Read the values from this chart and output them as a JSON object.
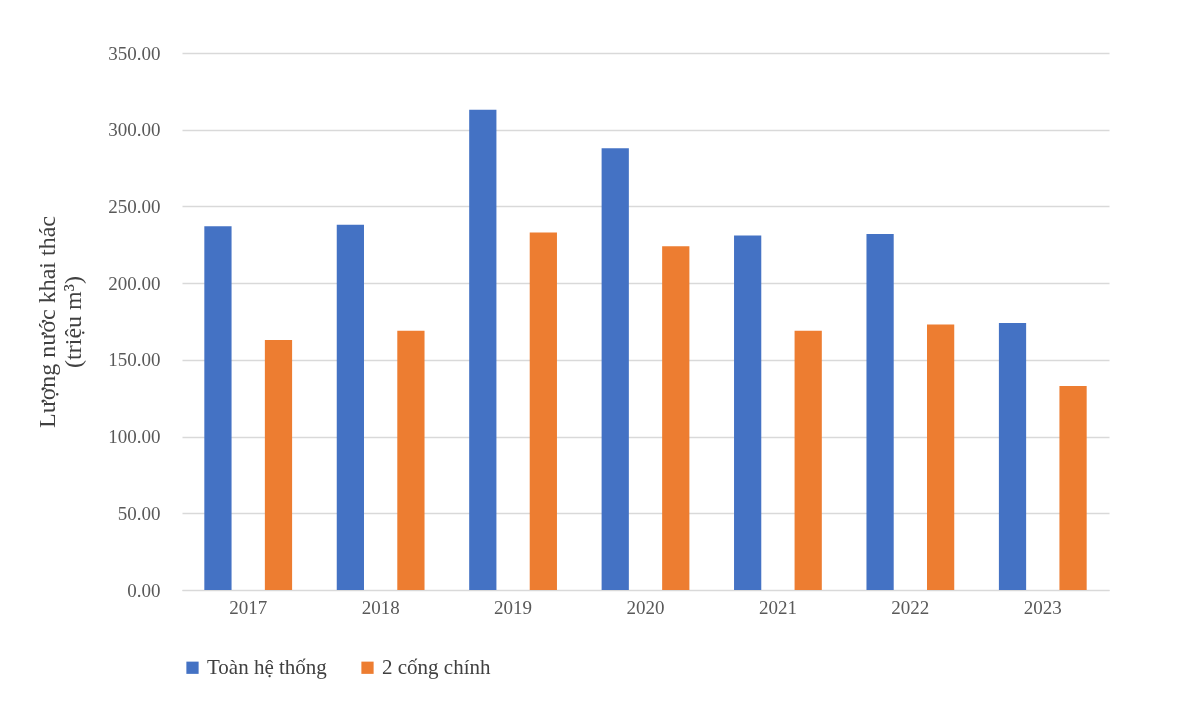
{
  "chart_data": {
    "type": "bar",
    "ylabel": "Lượng nước khai thác\n(triệu m³)",
    "categories": [
      "2017",
      "2018",
      "2019",
      "2020",
      "2021",
      "2022",
      "2023"
    ],
    "series": [
      {
        "name": "Toàn hệ thống",
        "color": "#4472c4",
        "values": [
          237,
          238,
          313,
          288,
          231,
          232,
          174
        ]
      },
      {
        "name": "2 cống chính",
        "color": "#ed7d31",
        "values": [
          163,
          169,
          233,
          224,
          169,
          173,
          133
        ]
      }
    ],
    "ylim": [
      0,
      350
    ],
    "yticks": [
      {
        "value": 0,
        "label": "0.00"
      },
      {
        "value": 50,
        "label": "50.00"
      },
      {
        "value": 100,
        "label": "100.00"
      },
      {
        "value": 150,
        "label": "150.00"
      },
      {
        "value": 200,
        "label": "200.00"
      },
      {
        "value": 250,
        "label": "250.00"
      },
      {
        "value": 300,
        "label": "300.00"
      },
      {
        "value": 350,
        "label": "350.00"
      }
    ],
    "grid": "y",
    "legend": "bottom"
  }
}
